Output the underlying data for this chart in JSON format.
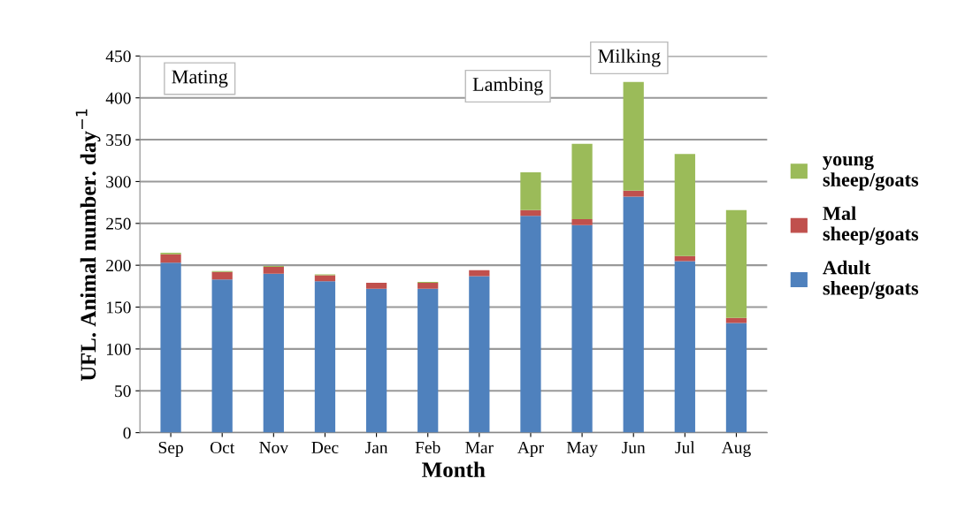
{
  "chart_data": {
    "type": "bar",
    "stacked": true,
    "xlabel": "Month",
    "ylabel": "UFL. Animal number. day$^{−1}$",
    "categories": [
      "Sep",
      "Oct",
      "Nov",
      "Dec",
      "Jan",
      "Feb",
      "Mar",
      "Apr",
      "May",
      "Jun",
      "Jul",
      "Aug"
    ],
    "series": [
      {
        "name": "Adult sheep/goats",
        "color": "#4f81bd",
        "values": [
          203,
          183,
          190,
          181,
          172,
          172,
          187,
          259,
          248,
          282,
          205,
          131
        ]
      },
      {
        "name": "Mal sheep/goats",
        "color": "#c0504d",
        "values": [
          10,
          9,
          8,
          7,
          7,
          7,
          7,
          7,
          7,
          7,
          6,
          6
        ]
      },
      {
        "name": "young sheep/goats",
        "color": "#9bbb59",
        "values": [
          2,
          1,
          1,
          1,
          0,
          1,
          0,
          45,
          90,
          130,
          122,
          129
        ]
      }
    ],
    "ylim": [
      0,
      450
    ],
    "yticks": [
      0,
      50,
      100,
      150,
      200,
      250,
      300,
      350,
      400,
      450
    ],
    "grid": "y",
    "legend": "right",
    "annotations": [
      "Mating",
      "Lambing",
      "Milking"
    ]
  }
}
